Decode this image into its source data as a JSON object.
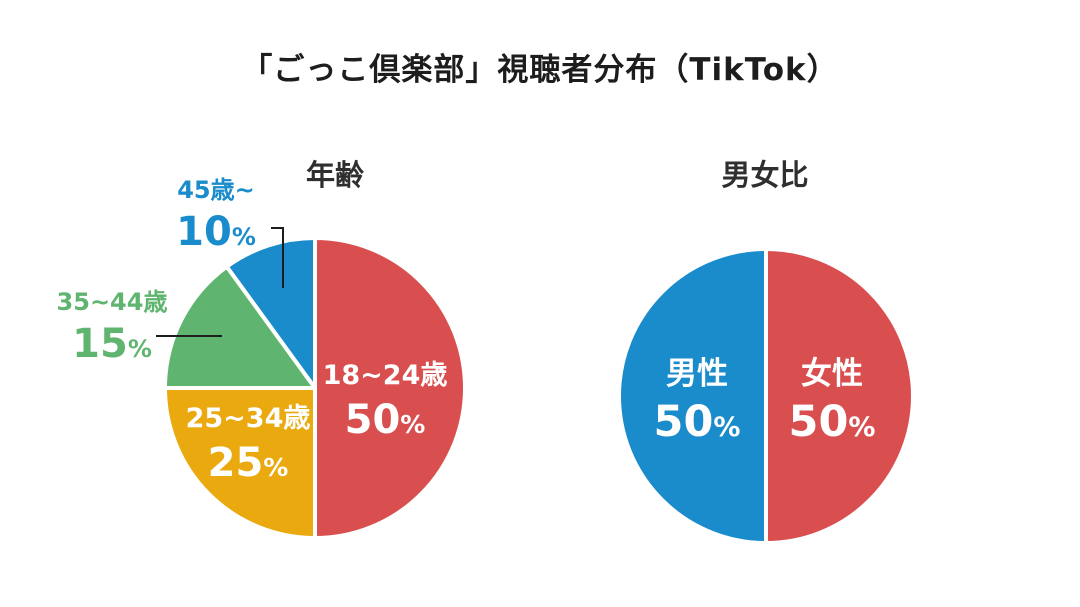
{
  "title": "「ごっこ倶楽部」視聴者分布（TikTok）",
  "colors": {
    "red": "#d94f4f",
    "blue": "#1a8bcb",
    "green": "#5fb570",
    "yellow": "#e9a90f",
    "text": "#1d1d1d",
    "white": "#ffffff"
  },
  "chart_data": [
    {
      "type": "pie",
      "title": "年齢",
      "series": [
        {
          "label": "18~24歳",
          "value": 50,
          "value_text": "50",
          "unit": "%",
          "color": "#d94f4f",
          "label_position": "inside"
        },
        {
          "label": "25~34歳",
          "value": 25,
          "value_text": "25",
          "unit": "%",
          "color": "#e9a90f",
          "label_position": "inside"
        },
        {
          "label": "35~44歳",
          "value": 15,
          "value_text": "15",
          "unit": "%",
          "color": "#5fb570",
          "label_position": "outside-left"
        },
        {
          "label": "45歳~",
          "value": 10,
          "value_text": "10",
          "unit": "%",
          "color": "#1a8bcb",
          "label_position": "outside-top"
        }
      ]
    },
    {
      "type": "pie",
      "title": "男女比",
      "series": [
        {
          "label": "女性",
          "value": 50,
          "value_text": "50",
          "unit": "%",
          "color": "#d94f4f",
          "label_position": "inside"
        },
        {
          "label": "男性",
          "value": 50,
          "value_text": "50",
          "unit": "%",
          "color": "#1a8bcb",
          "label_position": "inside"
        }
      ]
    }
  ]
}
